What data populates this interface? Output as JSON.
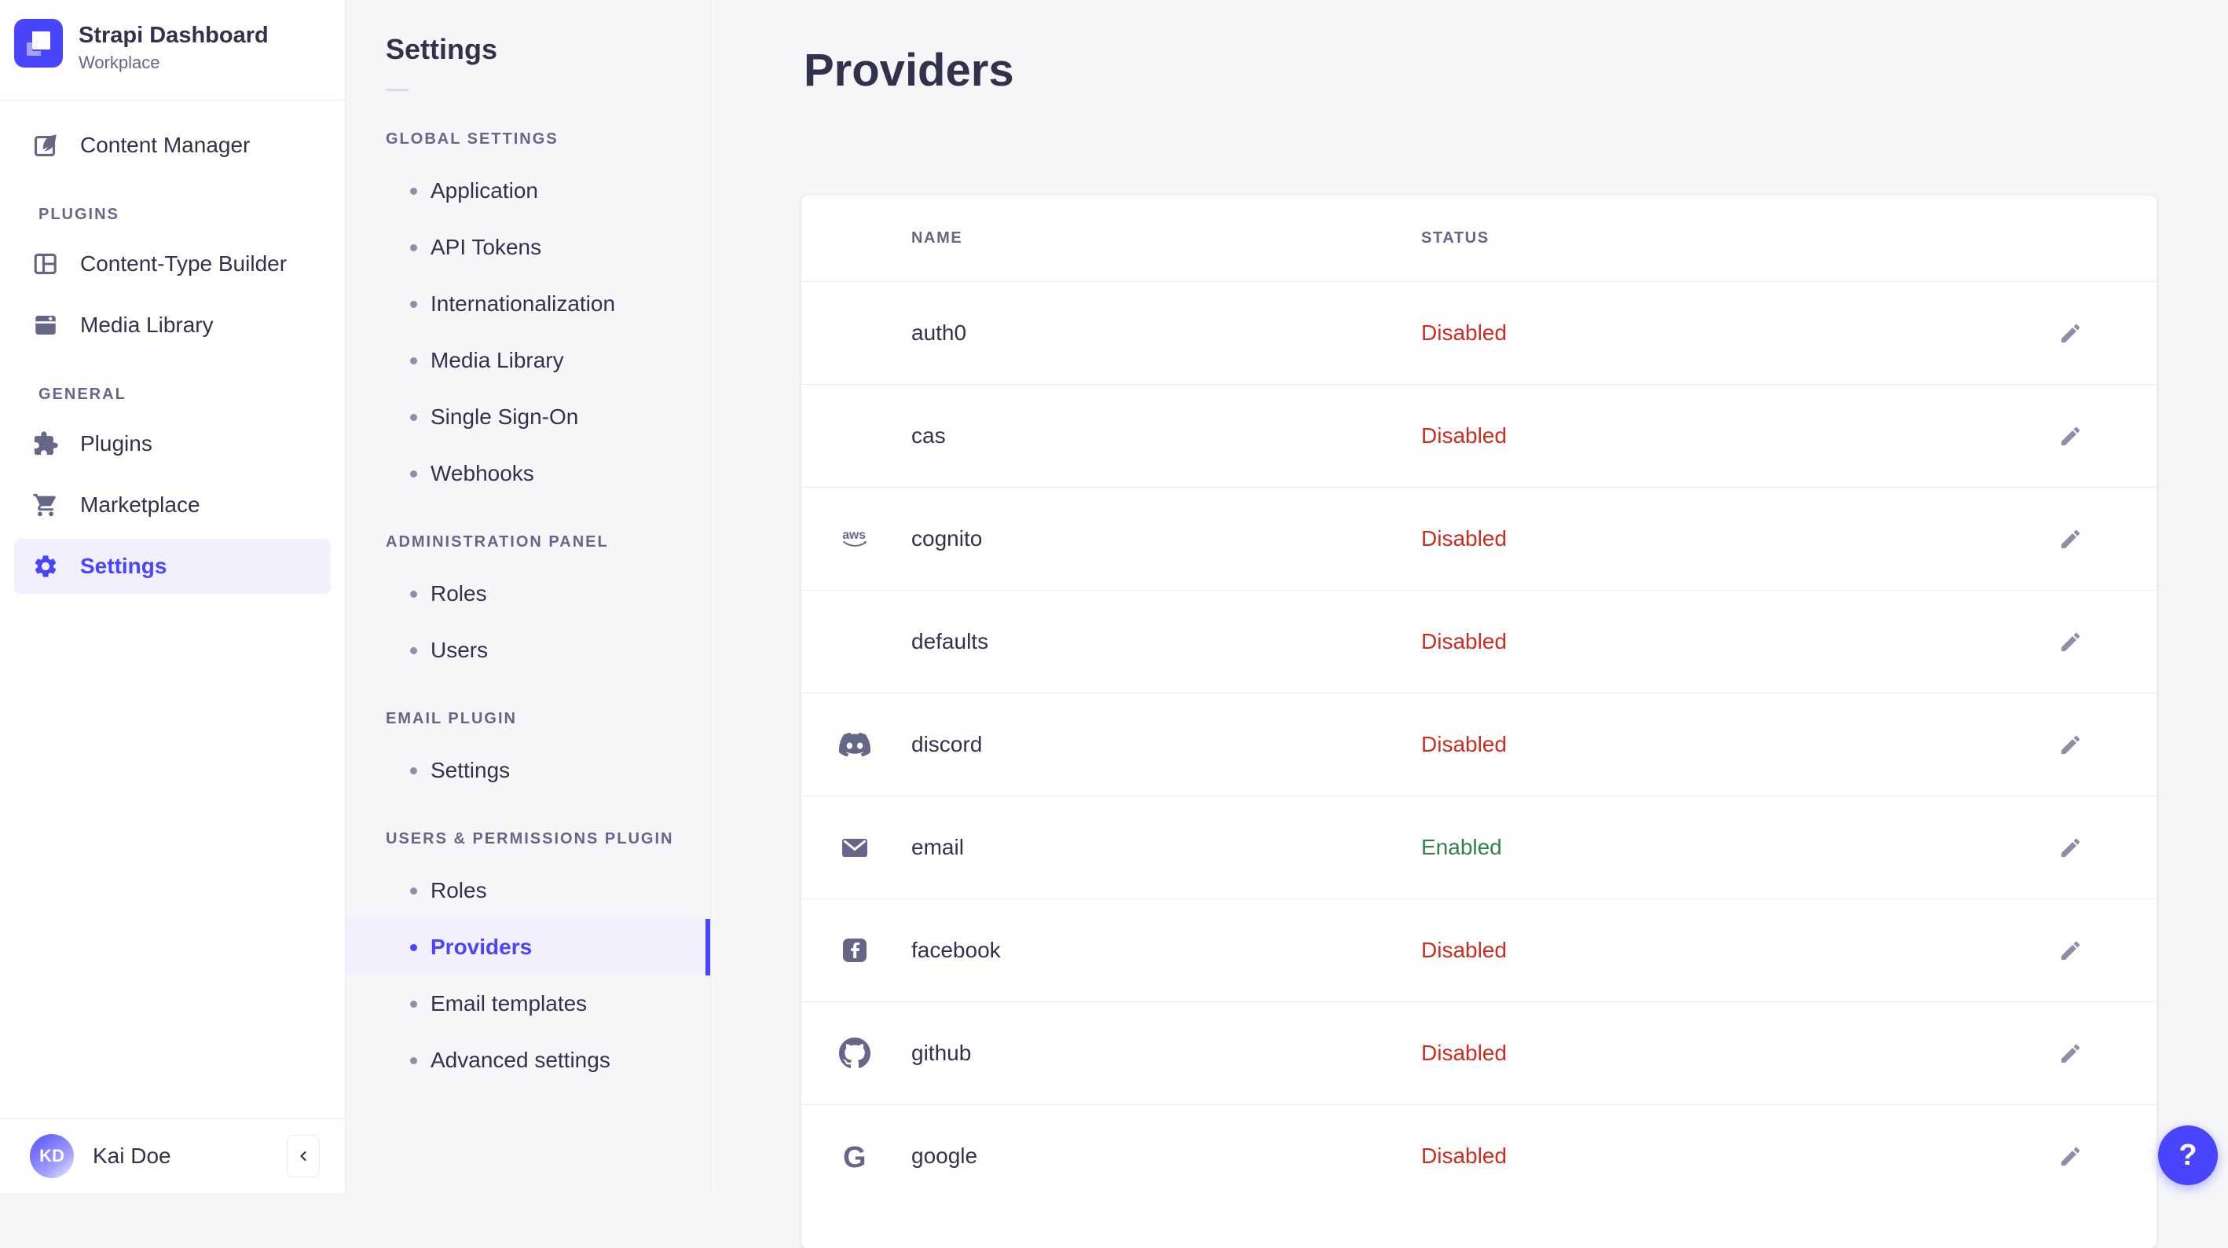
{
  "brand": {
    "title": "Strapi Dashboard",
    "subtitle": "Workplace"
  },
  "sidebar": {
    "top_item": {
      "label": "Content Manager",
      "icon": "content-manager-icon"
    },
    "sections": [
      {
        "header": "PLUGINS",
        "items": [
          {
            "label": "Content-Type Builder",
            "icon": "content-type-builder-icon"
          },
          {
            "label": "Media Library",
            "icon": "media-library-icon"
          }
        ]
      },
      {
        "header": "GENERAL",
        "items": [
          {
            "label": "Plugins",
            "icon": "plugins-icon"
          },
          {
            "label": "Marketplace",
            "icon": "marketplace-icon"
          },
          {
            "label": "Settings",
            "icon": "settings-icon",
            "active": true
          }
        ]
      }
    ],
    "user": {
      "initials": "KD",
      "name": "Kai Doe"
    },
    "collapse_icon": "chevron-left-icon"
  },
  "subnav": {
    "title": "Settings",
    "sections": [
      {
        "header": "GLOBAL SETTINGS",
        "items": [
          "Application",
          "API Tokens",
          "Internationalization",
          "Media Library",
          "Single Sign-On",
          "Webhooks"
        ]
      },
      {
        "header": "ADMINISTRATION PANEL",
        "items": [
          "Roles",
          "Users"
        ]
      },
      {
        "header": "EMAIL PLUGIN",
        "items": [
          "Settings"
        ]
      },
      {
        "header": "USERS & PERMISSIONS PLUGIN",
        "items": [
          "Roles",
          "Providers",
          "Email templates",
          "Advanced settings"
        ],
        "active_item": "Providers"
      }
    ]
  },
  "main": {
    "title": "Providers",
    "table": {
      "columns": [
        "NAME",
        "STATUS"
      ],
      "rows": [
        {
          "name": "auth0",
          "icon": null,
          "status": "Disabled"
        },
        {
          "name": "cas",
          "icon": null,
          "status": "Disabled"
        },
        {
          "name": "cognito",
          "icon": "aws-icon",
          "status": "Disabled"
        },
        {
          "name": "defaults",
          "icon": null,
          "status": "Disabled"
        },
        {
          "name": "discord",
          "icon": "discord-icon",
          "status": "Disabled"
        },
        {
          "name": "email",
          "icon": "email-icon",
          "status": "Enabled"
        },
        {
          "name": "facebook",
          "icon": "facebook-icon",
          "status": "Disabled"
        },
        {
          "name": "github",
          "icon": "github-icon",
          "status": "Disabled"
        },
        {
          "name": "google",
          "icon": "google-icon",
          "status": "Disabled"
        }
      ],
      "edit_icon": "pencil-icon"
    }
  },
  "help_button": {
    "label": "?"
  },
  "colors": {
    "accent": "#4945FF",
    "accent_bg": "#F0F0FF",
    "danger": "#D02B20",
    "success": "#328048",
    "text": "#32324D",
    "muted": "#666687",
    "border": "#EAEAEF",
    "bg": "#F6F6F9",
    "surface": "#FFFFFF"
  }
}
